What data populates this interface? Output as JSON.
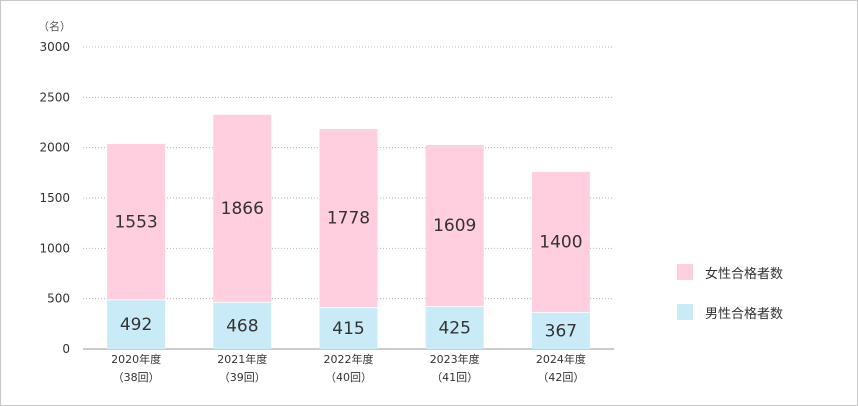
{
  "chart_data": {
    "type": "bar",
    "stacked": true,
    "unit_label": "（名）",
    "categories": [
      [
        "2020年度",
        "（38回）"
      ],
      [
        "2021年度",
        "（39回）"
      ],
      [
        "2022年度",
        "（40回）"
      ],
      [
        "2023年度",
        "（41回）"
      ],
      [
        "2024年度",
        "（42回）"
      ]
    ],
    "series": [
      {
        "name": "男性合格者数",
        "values": [
          492,
          468,
          415,
          425,
          367
        ],
        "color": "#c9ebf8"
      },
      {
        "name": "女性合格者数",
        "values": [
          1553,
          1866,
          1778,
          1609,
          1400
        ],
        "color": "#ffcfe0"
      }
    ],
    "ylim": [
      0,
      3000
    ],
    "yticks": [
      0,
      500,
      1000,
      1500,
      2000,
      2500,
      3000
    ],
    "grid": true,
    "gridline_style": "dotted",
    "legend_position": "right"
  },
  "legend": {
    "female_label": "女性合格者数",
    "male_label": "男性合格者数"
  }
}
